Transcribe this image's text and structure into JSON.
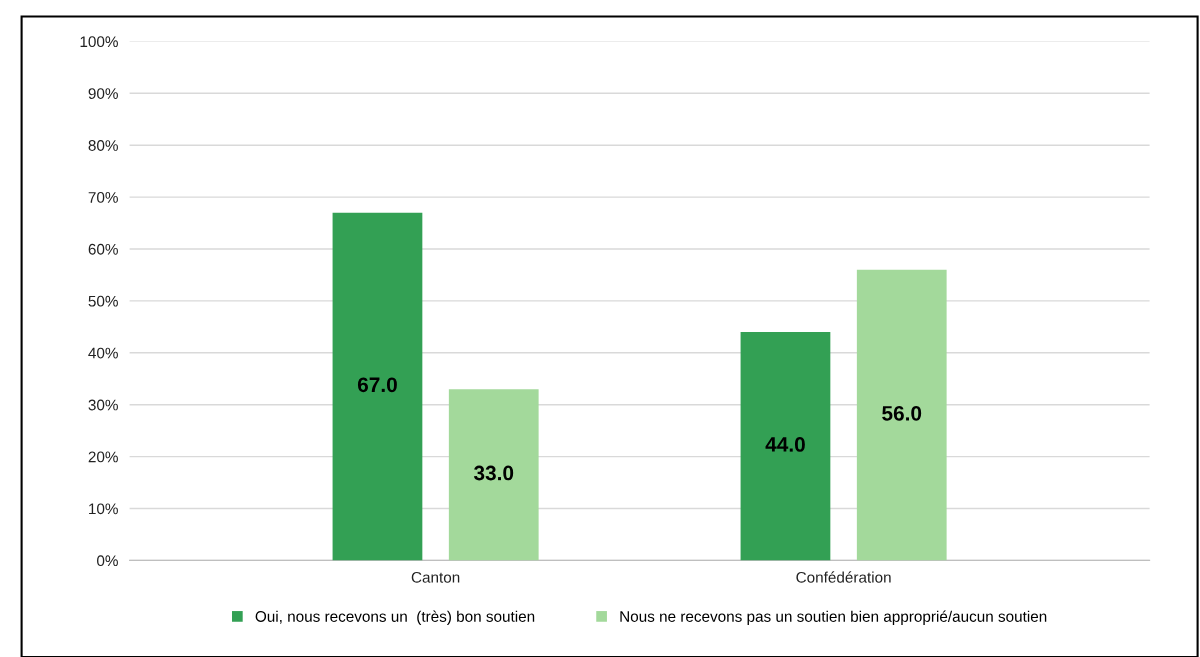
{
  "chart_data": {
    "type": "bar",
    "categories": [
      "Canton",
      "Confédération"
    ],
    "series": [
      {
        "name": "Oui, nous recevons un  (très) bon soutien",
        "color": "#33a054",
        "values": [
          67.0,
          44.0
        ],
        "value_labels": [
          "67.0",
          "44.0"
        ]
      },
      {
        "name": "Nous ne recevons pas un soutien bien approprié/aucun soutien",
        "color": "#a3d99b",
        "values": [
          33.0,
          56.0
        ],
        "value_labels": [
          "33.0",
          "56.0"
        ]
      }
    ],
    "ylim": [
      0,
      100
    ],
    "yticks": [
      {
        "value": 0,
        "label": "0%"
      },
      {
        "value": 10,
        "label": "10%"
      },
      {
        "value": 20,
        "label": "20%"
      },
      {
        "value": 30,
        "label": "30%"
      },
      {
        "value": 40,
        "label": "40%"
      },
      {
        "value": 50,
        "label": "50%"
      },
      {
        "value": 60,
        "label": "60%"
      },
      {
        "value": 70,
        "label": "70%"
      },
      {
        "value": 80,
        "label": "80%"
      },
      {
        "value": 90,
        "label": "90%"
      },
      {
        "value": 100,
        "label": "100%"
      }
    ],
    "grid": "y",
    "legend": "bottom"
  }
}
